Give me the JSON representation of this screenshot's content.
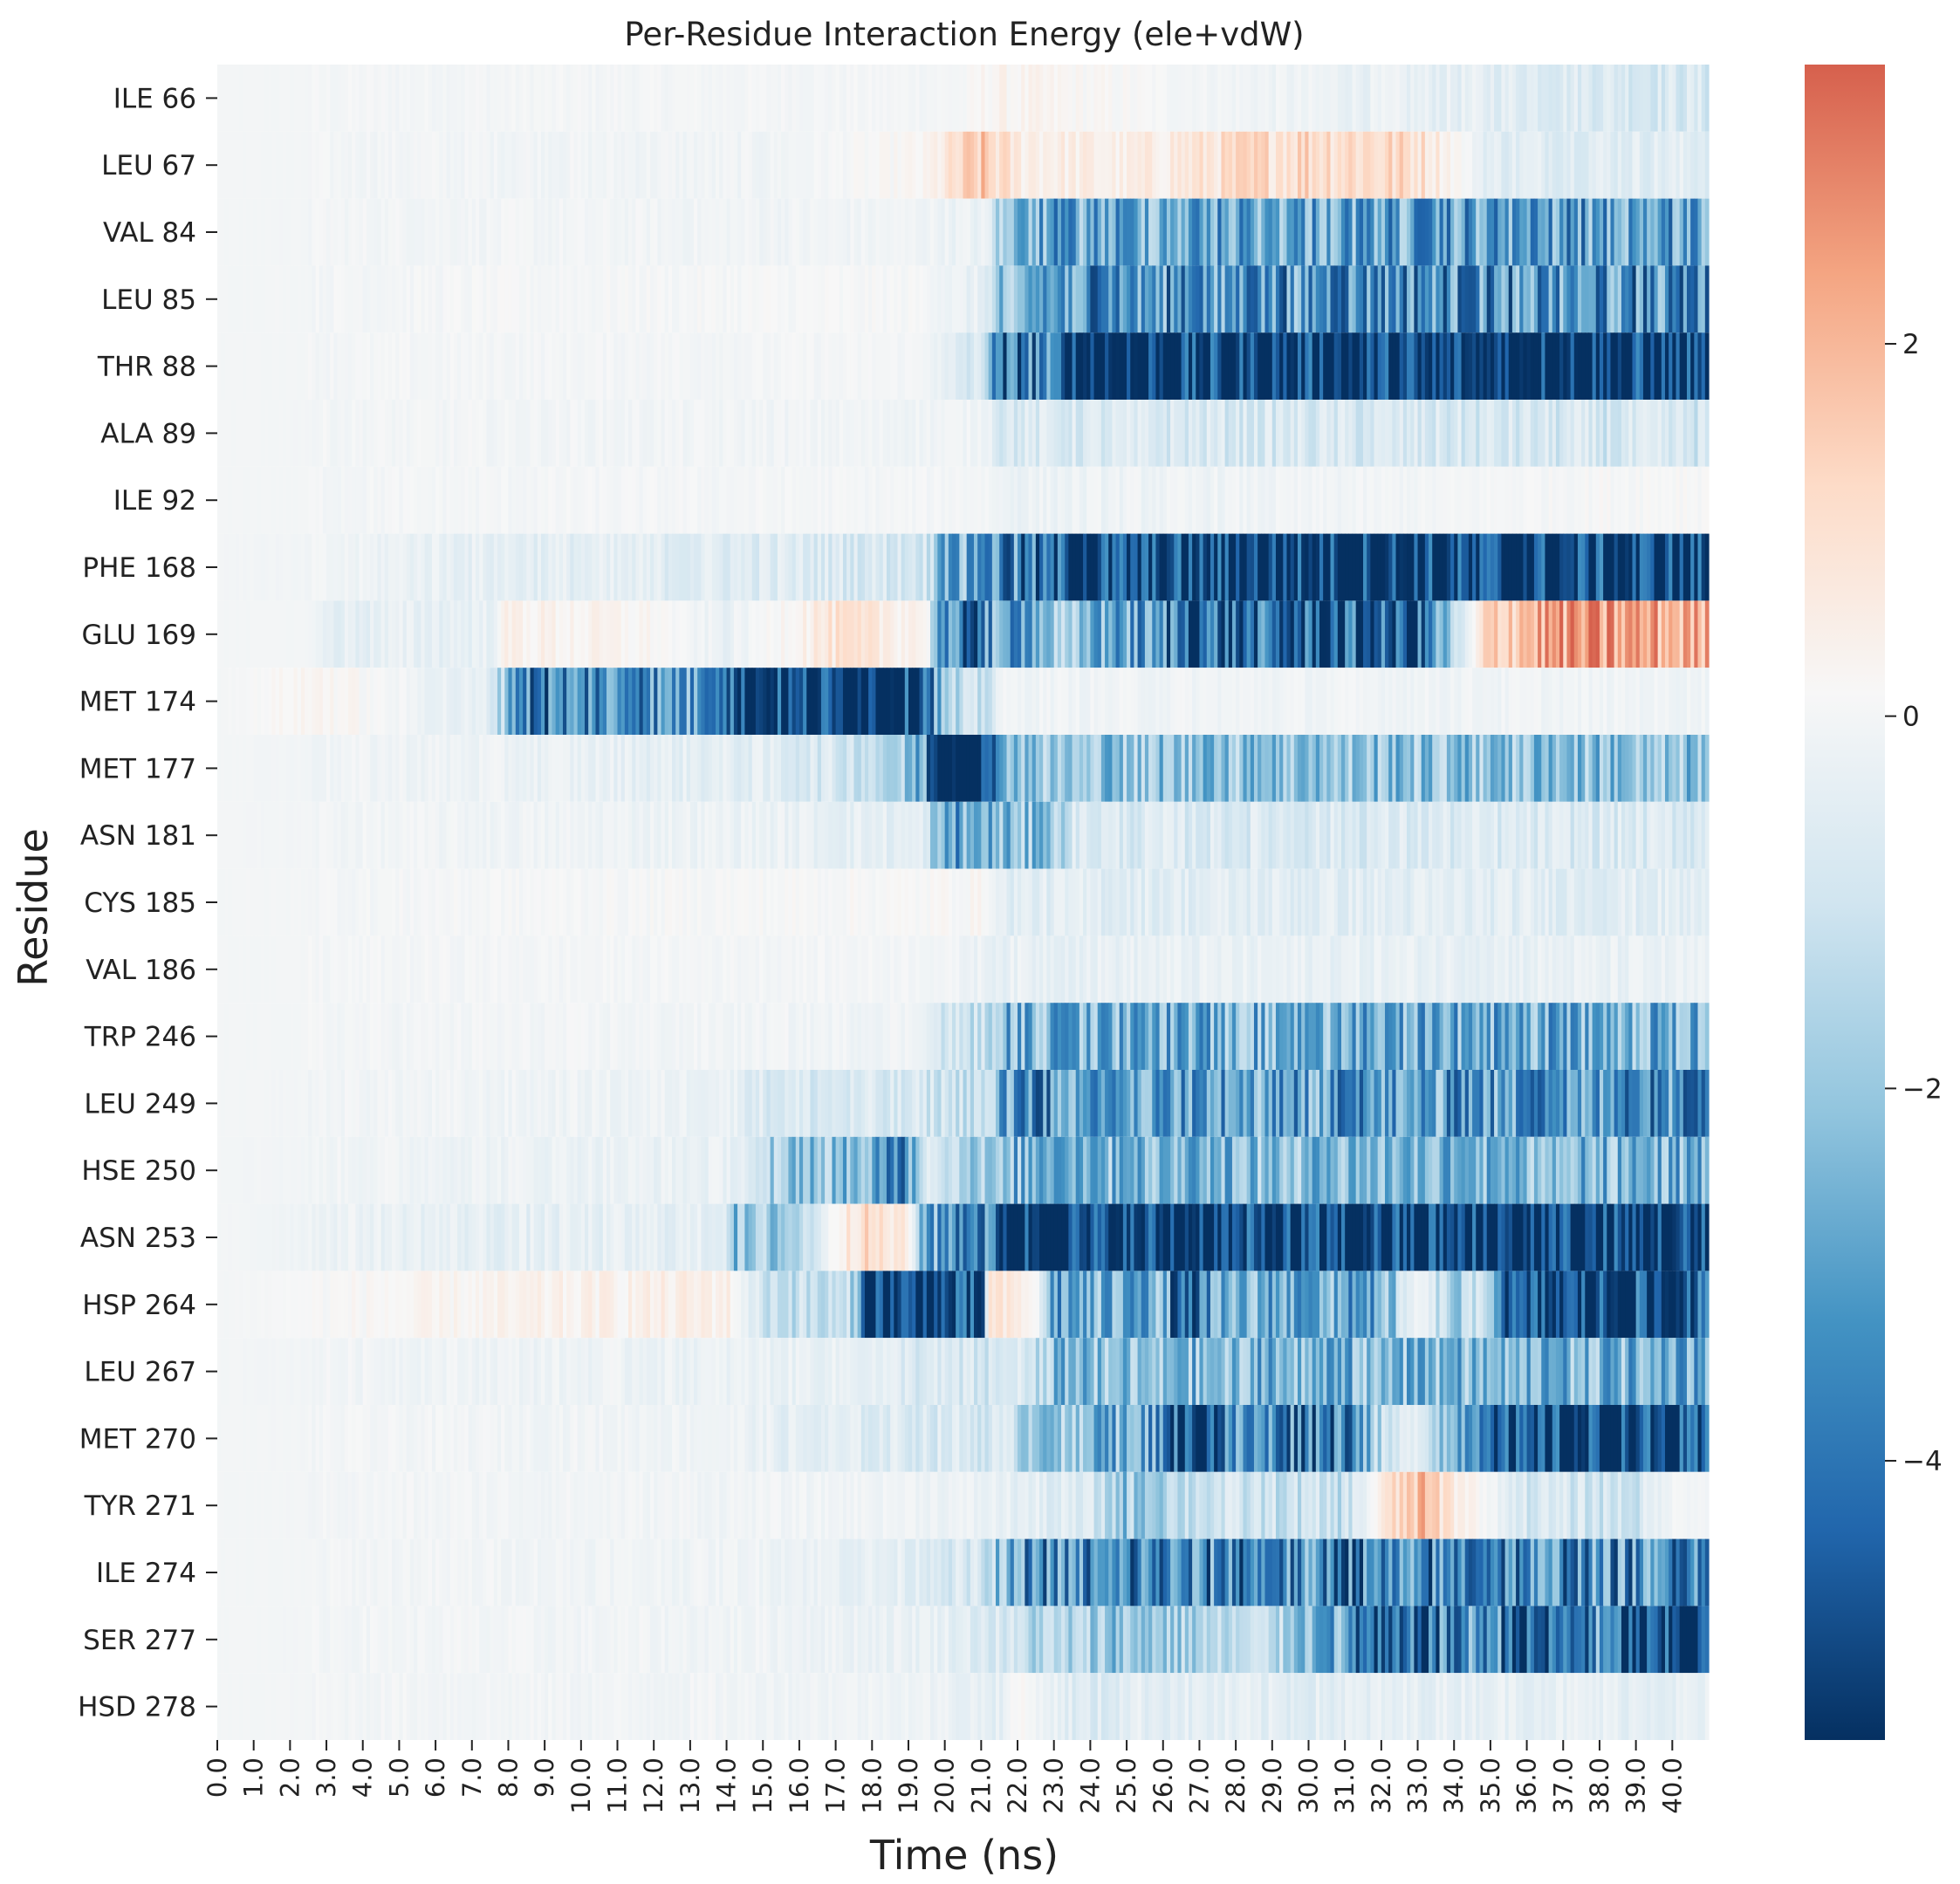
{
  "chart_data": {
    "type": "heatmap",
    "title": "Per-Residue Interaction Energy (ele+vdW)",
    "xlabel": "Time (ns)",
    "ylabel": "Residue",
    "residues": [
      "ILE 66",
      "LEU 67",
      "VAL 84",
      "LEU 85",
      "THR 88",
      "ALA 89",
      "ILE 92",
      "PHE 168",
      "GLU 169",
      "MET 174",
      "MET 177",
      "ASN 181",
      "CYS 185",
      "VAL 186",
      "TRP 246",
      "LEU 249",
      "HSE 250",
      "ASN 253",
      "HSP 264",
      "LEU 267",
      "MET 270",
      "TYR 271",
      "ILE 274",
      "SER 277",
      "HSD 278"
    ],
    "x_ticks": [
      "0.0",
      "1.0",
      "2.0",
      "3.0",
      "4.0",
      "5.0",
      "6.0",
      "7.0",
      "8.0",
      "9.0",
      "10.0",
      "11.0",
      "12.0",
      "13.0",
      "14.0",
      "15.0",
      "16.0",
      "17.0",
      "18.0",
      "19.0",
      "20.0",
      "21.0",
      "22.0",
      "23.0",
      "24.0",
      "25.0",
      "26.0",
      "27.0",
      "28.0",
      "29.0",
      "30.0",
      "31.0",
      "32.0",
      "33.0",
      "34.0",
      "35.0",
      "36.0",
      "37.0",
      "38.0",
      "39.0",
      "40.0"
    ],
    "time_range_ns": [
      0,
      41
    ],
    "colorbar": {
      "colormap": "RdBu_r",
      "vmin": -5.5,
      "vmax": 3.5,
      "ticks": [
        2,
        0,
        -2,
        -4
      ],
      "tick_labels": [
        "2",
        "0",
        "−2",
        "−4"
      ]
    },
    "segments": [
      {
        "residue": "ILE 66",
        "profile": [
          [
            0,
            0
          ],
          [
            20.5,
            0
          ],
          [
            21.3,
            0.3
          ],
          [
            41,
            -0.8
          ]
        ]
      },
      {
        "residue": "LEU 67",
        "profile": [
          [
            0,
            0
          ],
          [
            15,
            -0.1
          ],
          [
            19.5,
            0.2
          ],
          [
            21,
            1.5
          ],
          [
            22,
            0.6
          ],
          [
            25,
            0.4
          ],
          [
            28,
            1.0
          ],
          [
            30,
            1.3
          ],
          [
            33,
            1.1
          ],
          [
            35,
            -0.5
          ],
          [
            41,
            -0.5
          ]
        ]
      },
      {
        "residue": "VAL 84",
        "profile": [
          [
            0,
            0
          ],
          [
            19.5,
            -0.1
          ],
          [
            21.2,
            -0.3
          ],
          [
            21.5,
            -1.8
          ],
          [
            23,
            -2.8
          ],
          [
            41,
            -3.0
          ]
        ]
      },
      {
        "residue": "LEU 85",
        "profile": [
          [
            0,
            0
          ],
          [
            15,
            0.05
          ],
          [
            19.5,
            0.05
          ],
          [
            21.2,
            -0.5
          ],
          [
            21.5,
            -2.6
          ],
          [
            23,
            -3.2
          ],
          [
            41,
            -3.4
          ]
        ]
      },
      {
        "residue": "THR 88",
        "profile": [
          [
            0,
            0
          ],
          [
            19.6,
            0
          ],
          [
            20,
            -0.6
          ],
          [
            21.2,
            -1.0
          ],
          [
            21.4,
            -4.8
          ],
          [
            22.5,
            -3.5
          ],
          [
            23.5,
            -5.5
          ],
          [
            41,
            -5.5
          ]
        ]
      },
      {
        "residue": "ALA 89",
        "profile": [
          [
            0,
            0
          ],
          [
            21.2,
            -0.1
          ],
          [
            21.5,
            -0.7
          ],
          [
            41,
            -0.9
          ]
        ]
      },
      {
        "residue": "ILE 92",
        "profile": [
          [
            0,
            0
          ],
          [
            21.2,
            0
          ],
          [
            21.5,
            -0.2
          ],
          [
            30,
            -0.1
          ],
          [
            41,
            0.15
          ]
        ]
      },
      {
        "residue": "PHE 168",
        "profile": [
          [
            0,
            0
          ],
          [
            3,
            -0.1
          ],
          [
            8,
            -0.4
          ],
          [
            15,
            -0.6
          ],
          [
            19.5,
            -0.8
          ],
          [
            20,
            -2.5
          ],
          [
            21.5,
            -3.5
          ],
          [
            23,
            -4.8
          ],
          [
            26,
            -5.3
          ],
          [
            41,
            -5.3
          ]
        ]
      },
      {
        "residue": "GLU 169",
        "profile": [
          [
            0,
            0
          ],
          [
            2.6,
            0
          ],
          [
            2.8,
            -0.4
          ],
          [
            7.5,
            -0.3
          ],
          [
            8,
            0.4
          ],
          [
            12,
            0.2
          ],
          [
            14,
            -0.3
          ],
          [
            17,
            0.8
          ],
          [
            19.5,
            0.4
          ],
          [
            20,
            -4.5
          ],
          [
            23,
            -2.0
          ],
          [
            26,
            -3.5
          ],
          [
            28,
            -4.5
          ],
          [
            33,
            -4.8
          ],
          [
            35,
            1.5
          ],
          [
            37,
            2.5
          ],
          [
            41,
            2.0
          ]
        ]
      },
      {
        "residue": "MET 174",
        "profile": [
          [
            0,
            0
          ],
          [
            3,
            0.3
          ],
          [
            7.5,
            -0.5
          ],
          [
            8.5,
            -3.8
          ],
          [
            11,
            -3.2
          ],
          [
            14,
            -3.0
          ],
          [
            14.3,
            -5.3
          ],
          [
            19,
            -5.3
          ],
          [
            20,
            -2.0
          ],
          [
            21.2,
            -1.0
          ],
          [
            21.5,
            -0.1
          ],
          [
            41,
            -0.1
          ]
        ]
      },
      {
        "residue": "MET 177",
        "profile": [
          [
            0,
            0
          ],
          [
            8,
            -0.2
          ],
          [
            15,
            -0.5
          ],
          [
            18,
            -1.0
          ],
          [
            19.5,
            -3.0
          ],
          [
            19.7,
            -5.5
          ],
          [
            21.3,
            -5.5
          ],
          [
            21.5,
            -2.0
          ],
          [
            41,
            -2.2
          ]
        ]
      },
      {
        "residue": "ASN 181",
        "profile": [
          [
            0,
            0
          ],
          [
            15,
            -0.2
          ],
          [
            19.5,
            -0.5
          ],
          [
            19.7,
            -3.0
          ],
          [
            23,
            -2.0
          ],
          [
            23.5,
            -0.7
          ],
          [
            41,
            -0.7
          ]
        ]
      },
      {
        "residue": "CYS 185",
        "profile": [
          [
            0,
            0
          ],
          [
            19.5,
            0.1
          ],
          [
            21.2,
            0.2
          ],
          [
            21.5,
            -0.5
          ],
          [
            41,
            -0.5
          ]
        ]
      },
      {
        "residue": "VAL 186",
        "profile": [
          [
            0,
            0
          ],
          [
            19.5,
            0
          ],
          [
            21.5,
            -0.3
          ],
          [
            41,
            -0.3
          ]
        ]
      },
      {
        "residue": "TRP 246",
        "profile": [
          [
            0,
            0
          ],
          [
            19.5,
            -0.1
          ],
          [
            19.7,
            -0.8
          ],
          [
            21.3,
            -1.3
          ],
          [
            21.5,
            -2.5
          ],
          [
            41,
            -2.7
          ]
        ]
      },
      {
        "residue": "LEU 249",
        "profile": [
          [
            0,
            0
          ],
          [
            14,
            -0.2
          ],
          [
            15,
            -0.7
          ],
          [
            19.5,
            -0.9
          ],
          [
            21.3,
            -1.2
          ],
          [
            21.5,
            -3.2
          ],
          [
            24,
            -3.6
          ],
          [
            25,
            -3.0
          ],
          [
            41,
            -3.2
          ]
        ]
      },
      {
        "residue": "HSE 250",
        "profile": [
          [
            0,
            0
          ],
          [
            14.5,
            -0.3
          ],
          [
            15,
            -1.8
          ],
          [
            17.8,
            -2.2
          ],
          [
            18,
            -4.0
          ],
          [
            19,
            -3.0
          ],
          [
            19.5,
            -0.3
          ],
          [
            21.5,
            -2.5
          ],
          [
            30,
            -2.2
          ],
          [
            41,
            -2.6
          ]
        ]
      },
      {
        "residue": "ASN 253",
        "profile": [
          [
            0,
            0
          ],
          [
            7.5,
            -0.4
          ],
          [
            14,
            -0.4
          ],
          [
            14.3,
            -2.5
          ],
          [
            16,
            -1.5
          ],
          [
            17.5,
            1.2
          ],
          [
            19,
            0.5
          ],
          [
            19.5,
            -3.0
          ],
          [
            21.2,
            -3.5
          ],
          [
            21.4,
            -5.4
          ],
          [
            41,
            -5.4
          ]
        ]
      },
      {
        "residue": "HSP 264",
        "profile": [
          [
            0,
            0
          ],
          [
            14,
            0.5
          ],
          [
            15,
            -1.0
          ],
          [
            17.5,
            -1.5
          ],
          [
            17.8,
            -5.3
          ],
          [
            21,
            -5.3
          ],
          [
            21.2,
            0.8
          ],
          [
            22.5,
            0.3
          ],
          [
            23,
            -3.0
          ],
          [
            26,
            -2.5
          ],
          [
            26.5,
            -5.3
          ],
          [
            28,
            -2.5
          ],
          [
            32,
            -3.0
          ],
          [
            33,
            0.0
          ],
          [
            34,
            -2.0
          ],
          [
            35,
            -1.0
          ],
          [
            35.5,
            -5.3
          ],
          [
            41,
            -5.0
          ]
        ]
      },
      {
        "residue": "LEU 267",
        "profile": [
          [
            0,
            0
          ],
          [
            17.8,
            -0.3
          ],
          [
            19.5,
            -0.8
          ],
          [
            21.5,
            -1.0
          ],
          [
            22,
            -0.5
          ],
          [
            23,
            -2.3
          ],
          [
            41,
            -2.6
          ]
        ]
      },
      {
        "residue": "MET 270",
        "profile": [
          [
            0,
            0
          ],
          [
            14,
            -0.1
          ],
          [
            16,
            -0.5
          ],
          [
            21.5,
            -0.8
          ],
          [
            22.5,
            -1.8
          ],
          [
            26,
            -3.0
          ],
          [
            26.5,
            -5.3
          ],
          [
            28,
            -3.5
          ],
          [
            31,
            -3.5
          ],
          [
            32,
            -1.5
          ],
          [
            33,
            -0.2
          ],
          [
            34,
            -2.5
          ],
          [
            35,
            -3.0
          ],
          [
            35.5,
            -5.3
          ],
          [
            41,
            -5.3
          ]
        ]
      },
      {
        "residue": "TYR 271",
        "profile": [
          [
            0,
            0
          ],
          [
            19,
            -0.1
          ],
          [
            21.5,
            -0.3
          ],
          [
            24,
            -0.8
          ],
          [
            25,
            -2.0
          ],
          [
            27,
            -1.0
          ],
          [
            31,
            -1.2
          ],
          [
            32,
            0.5
          ],
          [
            33,
            1.8
          ],
          [
            34,
            0.7
          ],
          [
            36,
            -0.8
          ],
          [
            39,
            -1.0
          ],
          [
            40,
            0.0
          ],
          [
            41,
            0.0
          ]
        ]
      },
      {
        "residue": "ILE 274",
        "profile": [
          [
            0,
            0
          ],
          [
            15,
            -0.1
          ],
          [
            19.5,
            -0.5
          ],
          [
            21,
            -1.0
          ],
          [
            22,
            -3.2
          ],
          [
            25,
            -3.8
          ],
          [
            30,
            -3.5
          ],
          [
            32,
            -4.0
          ],
          [
            35,
            -3.5
          ],
          [
            41,
            -3.3
          ]
        ]
      },
      {
        "residue": "SER 277",
        "profile": [
          [
            0,
            0
          ],
          [
            15,
            -0.1
          ],
          [
            20,
            -0.3
          ],
          [
            21.5,
            -0.8
          ],
          [
            22.5,
            -1.5
          ],
          [
            25,
            -2.0
          ],
          [
            29,
            -1.3
          ],
          [
            31,
            -3.0
          ],
          [
            32,
            -5.3
          ],
          [
            35,
            -3.0
          ],
          [
            36,
            -5.0
          ],
          [
            38,
            -3.5
          ],
          [
            39,
            -5.3
          ],
          [
            41,
            -5.3
          ]
        ]
      },
      {
        "residue": "HSD 278",
        "profile": [
          [
            0,
            0
          ],
          [
            19,
            -0.1
          ],
          [
            21.5,
            -0.4
          ],
          [
            22,
            0.2
          ],
          [
            24,
            -0.8
          ],
          [
            25,
            -0.4
          ],
          [
            30,
            -0.5
          ],
          [
            35,
            -0.3
          ],
          [
            41,
            -0.4
          ]
        ]
      }
    ]
  }
}
